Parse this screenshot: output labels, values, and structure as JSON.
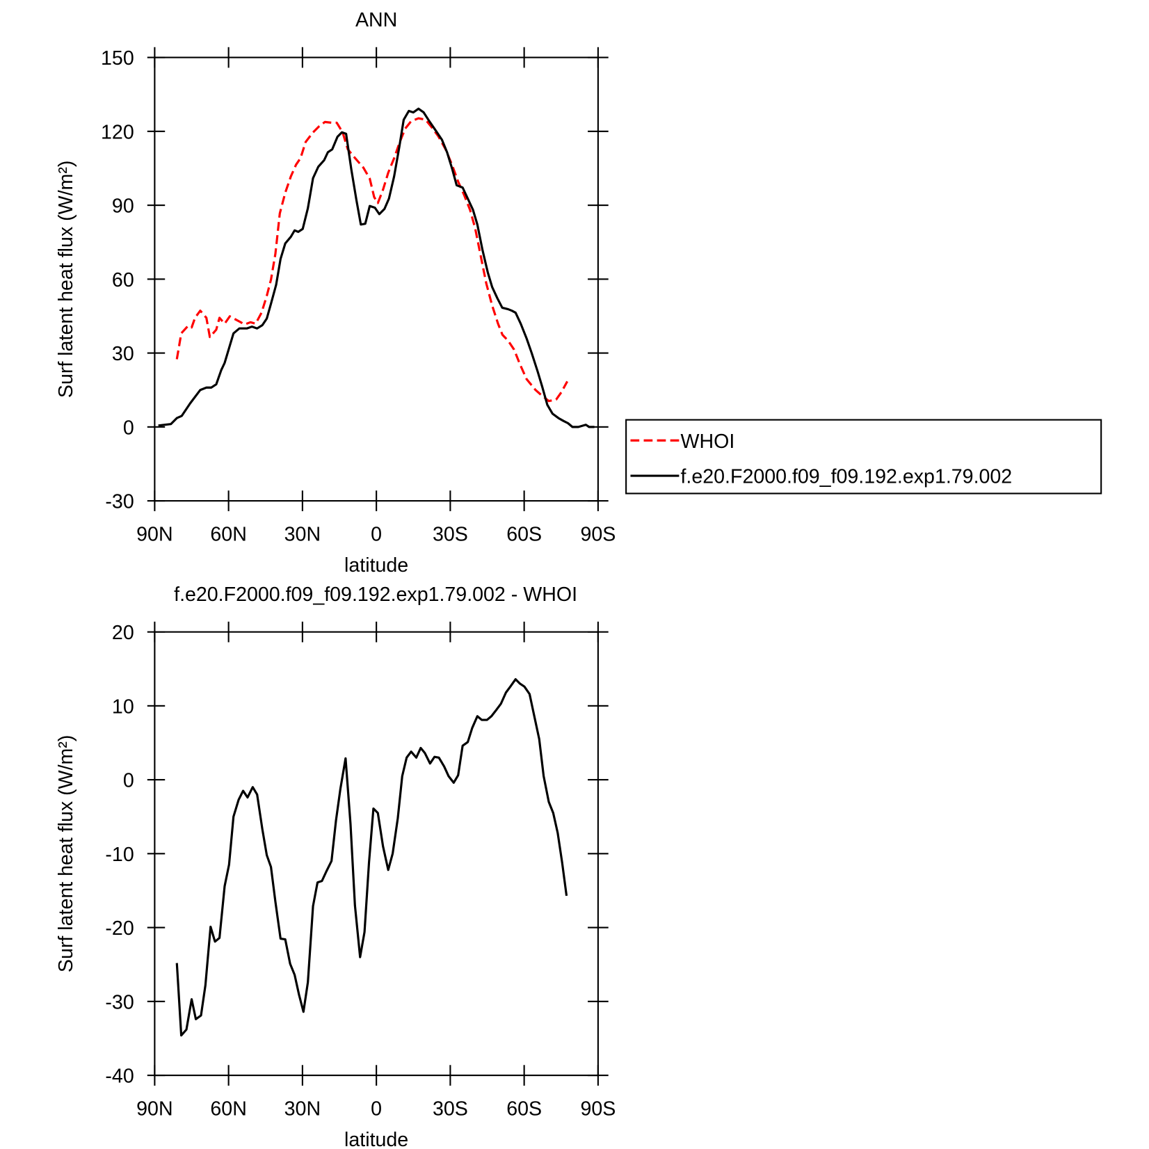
{
  "chart_data": [
    {
      "type": "line",
      "title": "ANN",
      "xlabel": "latitude",
      "ylabel": "Surf latent heat flux (W/m²)",
      "xlim": [
        90,
        -90
      ],
      "xticks": [
        {
          "value": 90,
          "label": "90N"
        },
        {
          "value": 60,
          "label": "60N"
        },
        {
          "value": 30,
          "label": "30N"
        },
        0,
        {
          "value": -30,
          "label": "30S"
        },
        {
          "value": -60,
          "label": "60S"
        },
        {
          "value": -90,
          "label": "90S"
        }
      ],
      "ylim": [
        -30,
        150
      ],
      "yticks": [
        -30,
        0,
        30,
        60,
        90,
        120,
        150
      ],
      "legend": "right",
      "series": [
        {
          "name": "WHOI",
          "color": "#ff0000",
          "linestyle": "dashed",
          "x": [
            81,
            79.2,
            76.5,
            75,
            73.6,
            71.5,
            69,
            67.6,
            65,
            63.7,
            61.6,
            59.5,
            55.6,
            53.5,
            51.1,
            49,
            46.6,
            44.5,
            42.8,
            41,
            39.2,
            37,
            34.7,
            32.6,
            30.8,
            28.7,
            25.7,
            23.3,
            20.9,
            18.2,
            16.1,
            13.7,
            11.6,
            8.6,
            5.3,
            2.7,
            0.9,
            -0.6,
            -2.7,
            -4.8,
            -7.2,
            -9.3,
            -11.7,
            -14.1,
            -17.1,
            -20,
            -22.2,
            -25.1,
            -28.1,
            -30.8,
            -33.2,
            -35.6,
            -38,
            -40.1,
            -42.2,
            -44.6,
            -47,
            -49.4,
            -51.2,
            -53.5,
            -55.9,
            -58.3,
            -61,
            -64.6,
            -67,
            -70,
            -73,
            -75.1,
            -77.5
          ],
          "values": [
            27.5,
            38,
            41,
            40.4,
            44.3,
            47.2,
            44.3,
            36.5,
            39.5,
            44.3,
            41.9,
            44.9,
            42.8,
            41.6,
            42.5,
            41.9,
            46.4,
            53.2,
            59.8,
            70.3,
            86.7,
            95.1,
            101.7,
            106.5,
            109.1,
            115.7,
            119.6,
            122,
            123.8,
            123.5,
            123.5,
            119.6,
            112.7,
            109.1,
            105.3,
            100.8,
            93.3,
            90.9,
            96.3,
            103.2,
            109.1,
            115.1,
            121.1,
            124.1,
            125.3,
            124.7,
            122,
            118.1,
            112.7,
            106.2,
            99.6,
            94.2,
            88.2,
            80.7,
            70.3,
            58.3,
            49.3,
            41.9,
            37.4,
            35,
            31.4,
            25.4,
            19.4,
            15,
            12.9,
            10.5,
            11.1,
            14.1,
            18.5
          ]
        },
        {
          "name": "f.e20.F2000.f09_f09.192.exp1.79.002",
          "color": "#000000",
          "linestyle": "solid",
          "x": [
            88.5,
            83.4,
            81,
            79,
            75.6,
            71.5,
            69,
            67,
            65,
            63,
            61.6,
            58,
            55.6,
            52.6,
            50.5,
            48.4,
            46.3,
            44.5,
            42.8,
            40.7,
            38.9,
            37,
            34.7,
            33.2,
            31.7,
            29.9,
            27.8,
            25.7,
            23.6,
            21.2,
            19.7,
            17.9,
            15.8,
            14,
            12.3,
            10.2,
            8.1,
            6.3,
            4.5,
            2.7,
            0.6,
            -1.2,
            -3.3,
            -5.1,
            -7.2,
            -9.3,
            -11.1,
            -13.2,
            -15,
            -17.1,
            -19.2,
            -21.5,
            -24.2,
            -26.6,
            -28.7,
            -30.8,
            -32.6,
            -35,
            -37.1,
            -39.2,
            -41,
            -43.1,
            -45.2,
            -47,
            -49.1,
            -51.1,
            -53.5,
            -55,
            -56.5,
            -58.6,
            -61,
            -63.1,
            -65.5,
            -67.3,
            -69.4,
            -71.5,
            -73.9,
            -76,
            -77.8,
            -79.6,
            -82,
            -85,
            -86.4,
            -88.5
          ],
          "values": [
            0.6,
            1.2,
            3.6,
            4.5,
            9.6,
            15,
            16,
            16,
            17.3,
            23,
            26,
            38,
            40,
            40,
            40.7,
            40,
            41.3,
            44,
            50,
            57.7,
            68.2,
            74.5,
            77.2,
            79.8,
            79.2,
            80.4,
            88.8,
            101,
            105.6,
            108.3,
            111.5,
            112.7,
            117.8,
            119.6,
            119,
            104.7,
            92.1,
            82.2,
            82.5,
            89.7,
            89,
            86.4,
            88.5,
            92.7,
            101.7,
            113.6,
            124.7,
            128.3,
            127.7,
            129.2,
            127.7,
            124.1,
            120.2,
            116.6,
            111.5,
            104.7,
            98.1,
            97.2,
            92.7,
            88.2,
            82.2,
            71.8,
            62.8,
            56.8,
            52.3,
            48.4,
            47.8,
            47.2,
            46.4,
            41.9,
            35.9,
            29.9,
            22.4,
            16.4,
            9,
            5.4,
            3.6,
            2.4,
            1.5,
            0,
            0,
            0.9,
            0,
            0
          ]
        }
      ]
    },
    {
      "type": "line",
      "title": "f.e20.F2000.f09_f09.192.exp1.79.002 - WHOI",
      "xlabel": "latitude",
      "ylabel": "Surf latent heat flux (W/m²)",
      "xlim": [
        90,
        -90
      ],
      "xticks": [
        {
          "value": 90,
          "label": "90N"
        },
        {
          "value": 60,
          "label": "60N"
        },
        {
          "value": 30,
          "label": "30N"
        },
        0,
        {
          "value": -30,
          "label": "30S"
        },
        {
          "value": -60,
          "label": "60S"
        },
        {
          "value": -90,
          "label": "90S"
        }
      ],
      "ylim": [
        -40,
        20
      ],
      "yticks": [
        -40,
        -30,
        -20,
        -10,
        0,
        10,
        20
      ],
      "series": [
        {
          "color": "#000000",
          "linestyle": "solid",
          "x": [
            81,
            79.2,
            77.1,
            75,
            73.3,
            71.2,
            69.4,
            67.3,
            65.5,
            63.7,
            61.6,
            59.8,
            58,
            55.9,
            54.1,
            52.3,
            50.2,
            48.4,
            46.3,
            44.5,
            42.8,
            41,
            38.9,
            37,
            35,
            33.2,
            31.4,
            29.6,
            27.8,
            25.7,
            23.9,
            22.1,
            20.3,
            18.2,
            16.4,
            14.6,
            12.5,
            10.5,
            8.7,
            6.6,
            4.8,
            3,
            1.2,
            -0.6,
            -2.7,
            -4.8,
            -6.6,
            -8.7,
            -10.5,
            -12.3,
            -14.1,
            -16.2,
            -18,
            -19.7,
            -21.8,
            -23.6,
            -25.4,
            -27.5,
            -29.3,
            -31.4,
            -33.2,
            -35,
            -37.1,
            -38.9,
            -41,
            -42.8,
            -44.9,
            -46.7,
            -48.8,
            -50.6,
            -52.6,
            -54.4,
            -56.5,
            -58.3,
            -60.1,
            -62.2,
            -64,
            -66.1,
            -67.9,
            -70,
            -71.8,
            -73.6,
            -75.4,
            -77.2
          ],
          "values": [
            -24.8,
            -34.6,
            -33.8,
            -29.7,
            -32.4,
            -31.9,
            -27.8,
            -19.9,
            -21.9,
            -21.4,
            -14.4,
            -11.5,
            -5,
            -2.7,
            -1.5,
            -2.4,
            -1,
            -2,
            -6.7,
            -10.2,
            -11.8,
            -16.5,
            -21.5,
            -21.6,
            -24.9,
            -26.4,
            -29.1,
            -31.4,
            -27.4,
            -17.1,
            -13.9,
            -13.7,
            -12.4,
            -11,
            -5.5,
            -1.2,
            2.9,
            -6,
            -17,
            -24,
            -20.6,
            -11.2,
            -3.9,
            -4.5,
            -9,
            -12.2,
            -10,
            -5.2,
            0.5,
            3,
            3.8,
            3,
            4.3,
            3.6,
            2.2,
            3.1,
            3,
            1.8,
            0.5,
            -0.4,
            0.6,
            4.6,
            5.1,
            7,
            8.6,
            8.1,
            8.1,
            8.6,
            9.5,
            10.3,
            11.8,
            12.6,
            13.6,
            13,
            12.6,
            11.6,
            8.8,
            5.5,
            0.5,
            -3,
            -4.5,
            -7.2,
            -11.2,
            -15.7
          ]
        }
      ]
    }
  ]
}
